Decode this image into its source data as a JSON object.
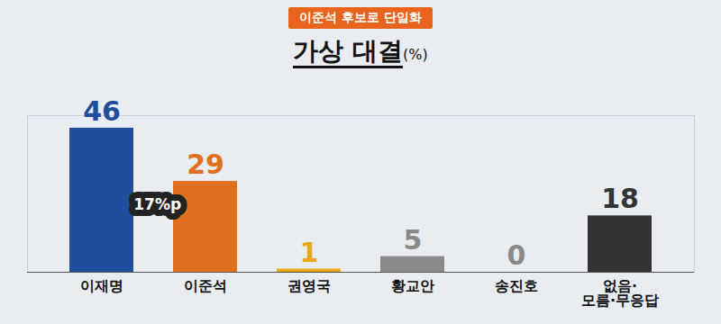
{
  "chart_data": {
    "type": "bar",
    "title": "가상 대결(%)",
    "subtitle": "이준석 후보로 단일화",
    "categories": [
      "이재명",
      "이준석",
      "권영국",
      "황교안",
      "송진호",
      "없음·모름·무응답"
    ],
    "values": [
      46,
      29,
      1,
      5,
      0,
      18
    ],
    "colors": [
      "#1f4e9c",
      "#e0701e",
      "#e8a817",
      "#8a8a8a",
      "#8a8a8a",
      "#333333"
    ],
    "ylim": [
      0,
      50
    ],
    "grid": false,
    "data_labels": true,
    "tick_labels": "x",
    "annotations": [
      {
        "text": "17%p"
      }
    ]
  }
}
